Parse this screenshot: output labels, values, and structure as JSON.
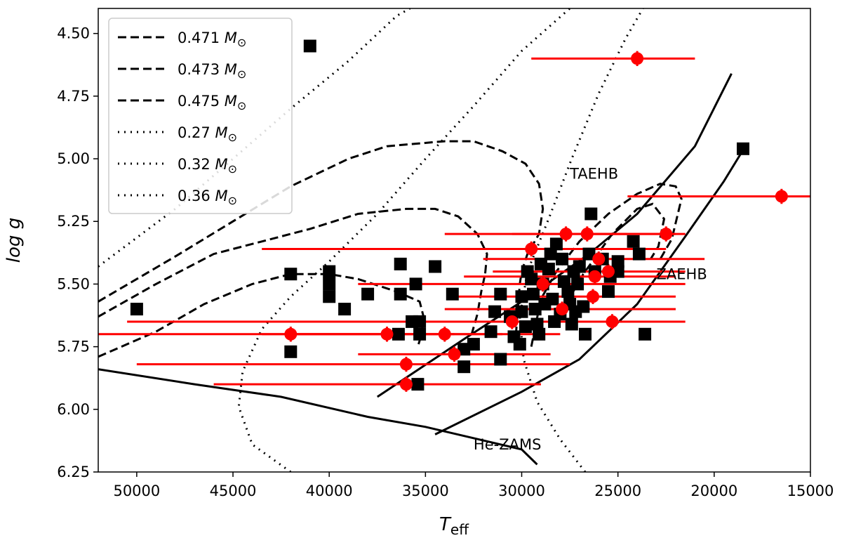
{
  "chart_data": {
    "type": "scatter",
    "title": "",
    "xlabel": "T_eff",
    "xlabel_main": "T",
    "xlabel_sub": "eff",
    "ylabel": "log g",
    "xlim": [
      52000,
      15000
    ],
    "ylim": [
      6.25,
      4.4
    ],
    "xticks": [
      50000,
      45000,
      40000,
      35000,
      30000,
      25000,
      20000,
      15000
    ],
    "xtick_labels": [
      "50000",
      "45000",
      "40000",
      "35000",
      "30000",
      "25000",
      "20000",
      "15000"
    ],
    "yticks": [
      4.5,
      4.75,
      5.0,
      5.25,
      5.5,
      5.75,
      6.0,
      6.25
    ],
    "ytick_labels": [
      "4.50",
      "4.75",
      "5.00",
      "5.25",
      "5.50",
      "5.75",
      "6.00",
      "6.25"
    ],
    "legend_position": "top-left",
    "legend": [
      {
        "value": "0.471",
        "style": "dashed"
      },
      {
        "value": "0.473",
        "style": "dashed"
      },
      {
        "value": "0.475",
        "style": "dashed"
      },
      {
        "value": " 0.27",
        "style": "dotted"
      },
      {
        "value": "0.32",
        "style": "dotted"
      },
      {
        "value": "0.36",
        "style": "dotted"
      }
    ],
    "legend_unit_main": "M",
    "legend_unit_sub": "⊙",
    "annotations": [
      {
        "text": "TAEHB",
        "x": 27500,
        "y": 5.08
      },
      {
        "text": "ZAEHB",
        "x": 23000,
        "y": 5.48
      },
      {
        "text": "He-ZAMS",
        "x": 32500,
        "y": 6.16
      }
    ],
    "colors": {
      "red": "#ff0000",
      "black": "#000000"
    },
    "solid_lines": [
      {
        "name": "He-ZAMS",
        "points": [
          [
            52000,
            5.84
          ],
          [
            47000,
            5.9
          ],
          [
            42500,
            5.95
          ],
          [
            38000,
            6.03
          ],
          [
            35000,
            6.07
          ],
          [
            30000,
            6.16
          ],
          [
            29200,
            6.22
          ]
        ]
      },
      {
        "name": "ZAEHB",
        "points": [
          [
            34500,
            6.1
          ],
          [
            30000,
            5.93
          ],
          [
            27000,
            5.8
          ],
          [
            24000,
            5.58
          ],
          [
            21500,
            5.31
          ],
          [
            19500,
            5.09
          ],
          [
            18300,
            4.94
          ]
        ]
      },
      {
        "name": "TAEHB",
        "points": [
          [
            37500,
            5.95
          ],
          [
            33000,
            5.72
          ],
          [
            30000,
            5.57
          ],
          [
            26500,
            5.38
          ],
          [
            24000,
            5.22
          ],
          [
            21000,
            4.95
          ],
          [
            19100,
            4.66
          ]
        ]
      }
    ],
    "dashed_lines": [
      {
        "name": "0.471",
        "points": [
          [
            52000,
            5.57
          ],
          [
            48000,
            5.39
          ],
          [
            45000,
            5.25
          ],
          [
            42000,
            5.11
          ],
          [
            39000,
            5.0
          ],
          [
            37000,
            4.95
          ],
          [
            35500,
            4.94
          ],
          [
            34000,
            4.93
          ],
          [
            32500,
            4.93
          ],
          [
            31000,
            4.97
          ],
          [
            29800,
            5.02
          ],
          [
            29100,
            5.1
          ],
          [
            28900,
            5.2
          ],
          [
            29100,
            5.3
          ],
          [
            29700,
            5.38
          ],
          [
            30000,
            5.45
          ],
          [
            30100,
            5.5
          ],
          [
            30200,
            5.6
          ],
          [
            30300,
            5.7
          ]
        ]
      },
      {
        "name": "0.473",
        "points": [
          [
            52000,
            5.63
          ],
          [
            49000,
            5.5
          ],
          [
            46000,
            5.38
          ],
          [
            43500,
            5.33
          ],
          [
            41000,
            5.28
          ],
          [
            38500,
            5.22
          ],
          [
            36000,
            5.2
          ],
          [
            34500,
            5.2
          ],
          [
            33300,
            5.23
          ],
          [
            32300,
            5.3
          ],
          [
            31800,
            5.38
          ],
          [
            31900,
            5.46
          ],
          [
            32100,
            5.53
          ],
          [
            32300,
            5.62
          ],
          [
            32600,
            5.7
          ],
          [
            32800,
            5.75
          ]
        ]
      },
      {
        "name": "0.475",
        "points": [
          [
            52000,
            5.79
          ],
          [
            49000,
            5.69
          ],
          [
            46500,
            5.58
          ],
          [
            44000,
            5.5
          ],
          [
            42000,
            5.46
          ],
          [
            40000,
            5.46
          ],
          [
            38500,
            5.48
          ],
          [
            36500,
            5.53
          ],
          [
            35300,
            5.57
          ],
          [
            35100,
            5.63
          ],
          [
            35200,
            5.7
          ],
          [
            35400,
            5.75
          ]
        ]
      },
      {
        "name": "hook-1",
        "points": [
          [
            29500,
            5.75
          ],
          [
            29000,
            5.56
          ],
          [
            28200,
            5.45
          ],
          [
            27000,
            5.33
          ],
          [
            25500,
            5.22
          ],
          [
            24000,
            5.14
          ],
          [
            22800,
            5.1
          ],
          [
            22000,
            5.11
          ],
          [
            21700,
            5.16
          ],
          [
            22200,
            5.32
          ],
          [
            22800,
            5.4
          ]
        ]
      },
      {
        "name": "hook-2",
        "points": [
          [
            28000,
            5.62
          ],
          [
            26800,
            5.46
          ],
          [
            25300,
            5.3
          ],
          [
            24000,
            5.2
          ],
          [
            23200,
            5.18
          ],
          [
            22600,
            5.24
          ],
          [
            22900,
            5.35
          ],
          [
            23300,
            5.4
          ]
        ]
      }
    ],
    "dotted_lines": [
      {
        "name": "0.27",
        "points": [
          [
            52000,
            5.43
          ],
          [
            48000,
            5.2
          ],
          [
            45000,
            5.0
          ],
          [
            42000,
            4.8
          ],
          [
            39000,
            4.61
          ],
          [
            36500,
            4.43
          ],
          [
            35800,
            4.4
          ]
        ]
      },
      {
        "name": "0.32",
        "points": [
          [
            42000,
            6.25
          ],
          [
            44000,
            6.14
          ],
          [
            44700,
            5.99
          ],
          [
            44500,
            5.85
          ],
          [
            43500,
            5.68
          ],
          [
            42000,
            5.55
          ],
          [
            40000,
            5.41
          ],
          [
            37500,
            5.22
          ],
          [
            35000,
            5.0
          ],
          [
            32500,
            4.79
          ],
          [
            30000,
            4.57
          ],
          [
            27500,
            4.4
          ]
        ]
      },
      {
        "name": "0.36",
        "points": [
          [
            26700,
            6.25
          ],
          [
            28000,
            6.12
          ],
          [
            29200,
            5.97
          ],
          [
            29900,
            5.8
          ],
          [
            30100,
            5.63
          ],
          [
            29700,
            5.45
          ],
          [
            28600,
            5.24
          ],
          [
            27400,
            5.0
          ],
          [
            26000,
            4.74
          ],
          [
            24600,
            4.52
          ],
          [
            23700,
            4.4
          ]
        ]
      }
    ],
    "series": [
      {
        "name": "black squares",
        "marker": "square",
        "color": "#000000",
        "points": [
          [
            41000,
            4.55
          ],
          [
            50000,
            5.6
          ],
          [
            42000,
            5.46
          ],
          [
            42000,
            5.77
          ],
          [
            40000,
            5.45
          ],
          [
            40000,
            5.5
          ],
          [
            40000,
            5.55
          ],
          [
            39200,
            5.6
          ],
          [
            38000,
            5.54
          ],
          [
            36300,
            5.42
          ],
          [
            36300,
            5.54
          ],
          [
            36400,
            5.7
          ],
          [
            35700,
            5.65
          ],
          [
            35500,
            5.5
          ],
          [
            35300,
            5.65
          ],
          [
            35300,
            5.7
          ],
          [
            35400,
            5.9
          ],
          [
            34500,
            5.43
          ],
          [
            33600,
            5.54
          ],
          [
            33000,
            5.76
          ],
          [
            33000,
            5.83
          ],
          [
            32500,
            5.74
          ],
          [
            31600,
            5.69
          ],
          [
            31400,
            5.61
          ],
          [
            31100,
            5.54
          ],
          [
            31100,
            5.8
          ],
          [
            30400,
            5.71
          ],
          [
            30100,
            5.74
          ],
          [
            30000,
            5.55
          ],
          [
            30000,
            5.61
          ],
          [
            29700,
            5.45
          ],
          [
            29500,
            5.48
          ],
          [
            29400,
            5.54
          ],
          [
            29300,
            5.6
          ],
          [
            29200,
            5.66
          ],
          [
            29100,
            5.7
          ],
          [
            29000,
            5.42
          ],
          [
            28900,
            5.5
          ],
          [
            28800,
            5.58
          ],
          [
            28600,
            5.44
          ],
          [
            28500,
            5.38
          ],
          [
            28400,
            5.56
          ],
          [
            28200,
            5.34
          ],
          [
            28000,
            5.62
          ],
          [
            27900,
            5.4
          ],
          [
            27800,
            5.49
          ],
          [
            27600,
            5.53
          ],
          [
            27500,
            5.58
          ],
          [
            27400,
            5.66
          ],
          [
            27300,
            5.45
          ],
          [
            27100,
            5.5
          ],
          [
            27000,
            5.43
          ],
          [
            26800,
            5.59
          ],
          [
            26700,
            5.7
          ],
          [
            26500,
            5.38
          ],
          [
            26400,
            5.22
          ],
          [
            26200,
            5.45
          ],
          [
            25800,
            5.4
          ],
          [
            25500,
            5.53
          ],
          [
            25400,
            5.47
          ],
          [
            25000,
            5.41
          ],
          [
            25000,
            5.45
          ],
          [
            24200,
            5.33
          ],
          [
            23900,
            5.38
          ],
          [
            23600,
            5.7
          ],
          [
            18500,
            4.96
          ],
          [
            27200,
            5.61
          ],
          [
            28300,
            5.65
          ],
          [
            29800,
            5.67
          ],
          [
            30600,
            5.63
          ]
        ]
      },
      {
        "name": "red circles",
        "marker": "circle",
        "color": "#ff0000",
        "points": [
          {
            "x": 24000,
            "y": 4.6,
            "xerr": [
              29500,
              21000
            ],
            "yerr": 0.03
          },
          {
            "x": 16500,
            "y": 5.15,
            "xerr": [
              24500,
              15000
            ],
            "yerr": 0.03
          },
          {
            "x": 22500,
            "y": 5.3,
            "xerr": [
              26500,
              22000
            ],
            "yerr": 0.03
          },
          {
            "x": 27700,
            "y": 5.3,
            "xerr": [
              34000,
              21500
            ],
            "yerr": 0.03
          },
          {
            "x": 26600,
            "y": 5.3,
            "xerr": [
              30500,
              24500
            ],
            "yerr": 0.03
          },
          {
            "x": 29500,
            "y": 5.36,
            "xerr": [
              43500,
              22500
            ],
            "yerr": 0.03
          },
          {
            "x": 26000,
            "y": 5.4,
            "xerr": [
              32000,
              20500
            ],
            "yerr": 0.03
          },
          {
            "x": 25500,
            "y": 5.45,
            "xerr": [
              31500,
              21500
            ],
            "yerr": 0.03
          },
          {
            "x": 26200,
            "y": 5.47,
            "xerr": [
              33000,
              22000
            ],
            "yerr": 0.03
          },
          {
            "x": 28900,
            "y": 5.5,
            "xerr": [
              38500,
              21500
            ],
            "yerr": 0.03
          },
          {
            "x": 26300,
            "y": 5.55,
            "xerr": [
              33500,
              22000
            ],
            "yerr": 0.03
          },
          {
            "x": 27900,
            "y": 5.6,
            "xerr": [
              34000,
              22000
            ],
            "yerr": 0.03
          },
          {
            "x": 25300,
            "y": 5.65,
            "xerr": [
              34000,
              21500
            ],
            "yerr": 0.03
          },
          {
            "x": 30500,
            "y": 5.65,
            "xerr": [
              50500,
              22000
            ],
            "yerr": 0.03
          },
          {
            "x": 42000,
            "y": 5.7,
            "xerr": [
              52000,
              33500
            ],
            "yerr": 0.03
          },
          {
            "x": 37000,
            "y": 5.7,
            "xerr": [
              43500,
              31000
            ],
            "yerr": 0.03
          },
          {
            "x": 34000,
            "y": 5.7,
            "xerr": [
              42000,
              28000
            ],
            "yerr": 0.03
          },
          {
            "x": 33500,
            "y": 5.78,
            "xerr": [
              38500,
              28500
            ],
            "yerr": 0.03
          },
          {
            "x": 36000,
            "y": 5.82,
            "xerr": [
              50000,
              27500
            ],
            "yerr": 0.03
          },
          {
            "x": 36000,
            "y": 5.9,
            "xerr": [
              46000,
              29000
            ],
            "yerr": 0.03
          }
        ]
      }
    ]
  }
}
